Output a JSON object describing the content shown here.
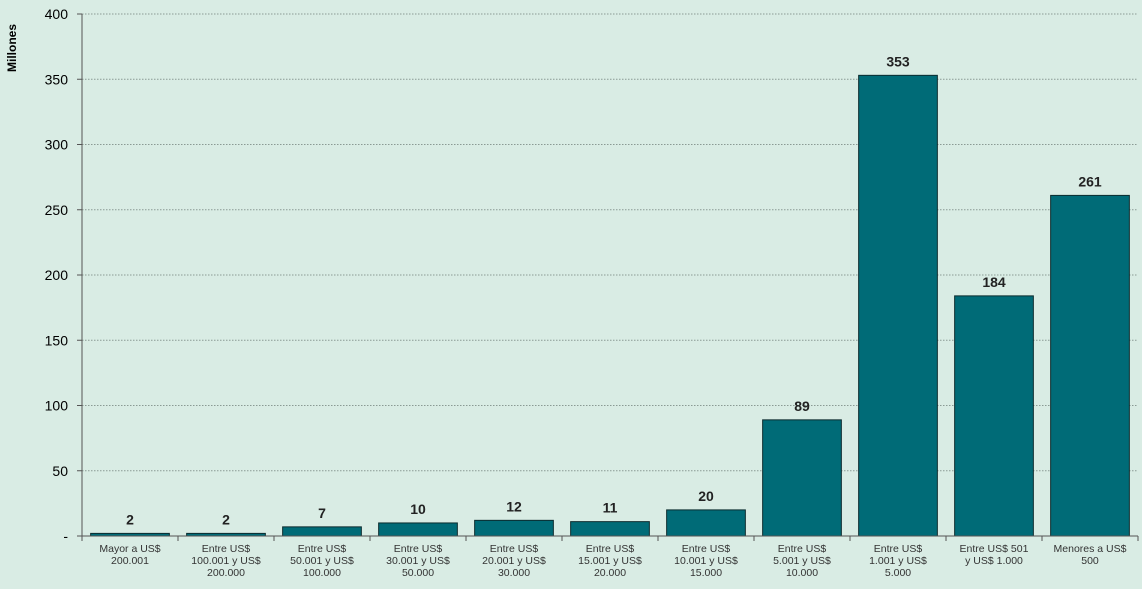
{
  "chart_data": {
    "type": "bar",
    "ylabel": "Millones",
    "ylim": [
      0,
      400
    ],
    "yticks": [
      0,
      50,
      100,
      150,
      200,
      250,
      300,
      350,
      400
    ],
    "ytick_labels": [
      "-",
      "50",
      "100",
      "150",
      "200",
      "250",
      "300",
      "350",
      "400"
    ],
    "grid": true,
    "bar_color": "#006b77",
    "categories": [
      [
        "Mayor a US$",
        "200.001"
      ],
      [
        "Entre US$",
        "100.001 y US$",
        "200.000"
      ],
      [
        "Entre US$",
        "50.001 y US$",
        "100.000"
      ],
      [
        "Entre US$",
        "30.001 y US$",
        "50.000"
      ],
      [
        "Entre US$",
        "20.001 y US$",
        "30.000"
      ],
      [
        "Entre US$",
        "15.001 y US$",
        "20.000"
      ],
      [
        "Entre US$",
        "10.001 y US$",
        "15.000"
      ],
      [
        "Entre US$",
        "5.001 y US$",
        "10.000"
      ],
      [
        "Entre US$",
        "1.001 y US$",
        "5.000"
      ],
      [
        "Entre US$ 501",
        "y US$ 1.000"
      ],
      [
        "Menores a US$",
        "500"
      ]
    ],
    "values": [
      2,
      2,
      7,
      10,
      12,
      11,
      20,
      89,
      353,
      184,
      261
    ],
    "data_labels": [
      "2",
      "2",
      "7",
      "10",
      "12",
      "11",
      "20",
      "89",
      "353",
      "184",
      "261"
    ]
  }
}
